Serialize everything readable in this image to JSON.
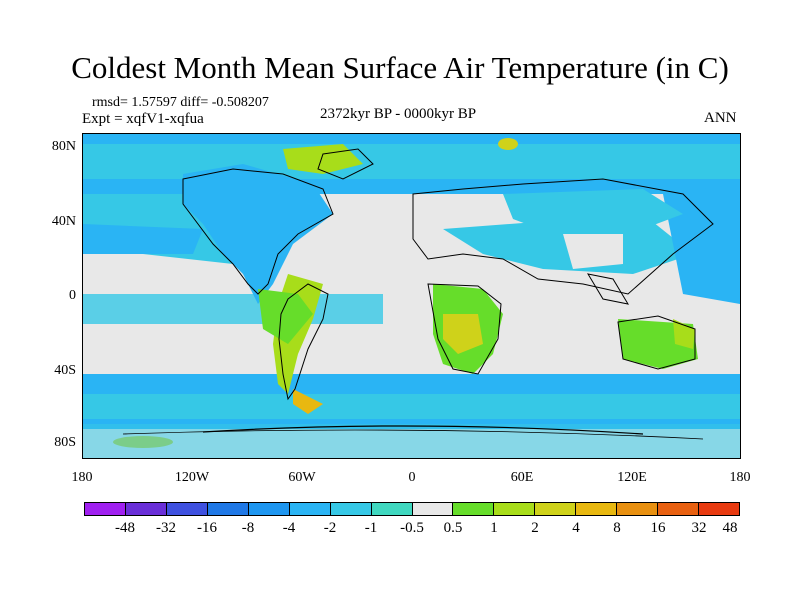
{
  "title": "Coldest Month Mean Surface Air Temperature (in C)",
  "stats": "rmsd= 1.57597  diff= -0.508207",
  "experiment": "Expt = xqfV1-xqfua",
  "period": "2372kyr BP - 0000kyr BP",
  "season": "ANN",
  "y_axis_labels": [
    "80N",
    "40N",
    "0",
    "40S",
    "80S"
  ],
  "x_axis_labels": [
    "180",
    "120W",
    "60W",
    "0",
    "60E",
    "120E",
    "180"
  ],
  "colorbar": {
    "colors": [
      "#a020f0",
      "#6a2fd8",
      "#3f51e0",
      "#1f78e6",
      "#1e96f0",
      "#2ab4f4",
      "#36c8e6",
      "#40d8c0",
      "#e8e8e8",
      "#66dd2a",
      "#a8dd1a",
      "#cfd21a",
      "#e8b810",
      "#e89010",
      "#e86010",
      "#e83a10"
    ],
    "labels": [
      "-48",
      "-32",
      "-16",
      "-8",
      "-4",
      "-2",
      "-1",
      "-0.5",
      "0.5",
      "1",
      "2",
      "4",
      "8",
      "16",
      "32",
      "48"
    ]
  }
}
